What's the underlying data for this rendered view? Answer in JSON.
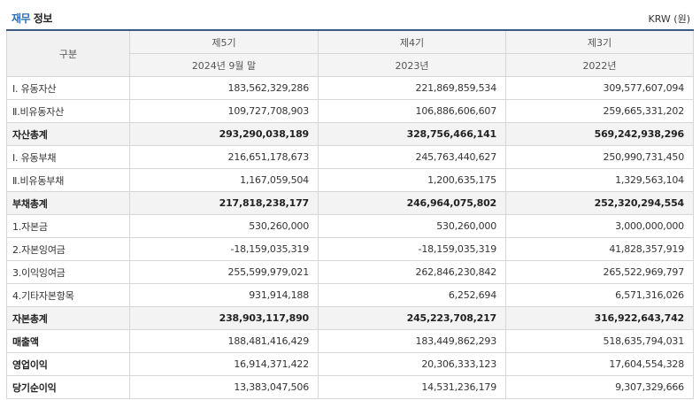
{
  "header": {
    "title_accent": "재무",
    "title_rest": "정보",
    "currency": "KRW (원)"
  },
  "table": {
    "corner": "구분",
    "periods": [
      {
        "name": "제5기",
        "date": "2024년 9월 말"
      },
      {
        "name": "제4기",
        "date": "2023년"
      },
      {
        "name": "제3기",
        "date": "2022년"
      }
    ],
    "rows": [
      {
        "label": "Ⅰ. 유동자산",
        "values": [
          "183,562,329,286",
          "221,869,859,534",
          "309,577,607,094"
        ],
        "style": "normal"
      },
      {
        "label": "Ⅱ.비유동자산",
        "values": [
          "109,727,708,903",
          "106,886,606,607",
          "259,665,331,202"
        ],
        "style": "normal"
      },
      {
        "label": "자산총계",
        "values": [
          "293,290,038,189",
          "328,756,466,141",
          "569,242,938,296"
        ],
        "style": "total"
      },
      {
        "label": "Ⅰ. 유동부채",
        "values": [
          "216,651,178,673",
          "245,763,440,627",
          "250,990,731,450"
        ],
        "style": "normal"
      },
      {
        "label": "Ⅱ.비유동부채",
        "values": [
          "1,167,059,504",
          "1,200,635,175",
          "1,329,563,104"
        ],
        "style": "normal"
      },
      {
        "label": "부채총계",
        "values": [
          "217,818,238,177",
          "246,964,075,802",
          "252,320,294,554"
        ],
        "style": "total"
      },
      {
        "label": "1.자본금",
        "values": [
          "530,260,000",
          "530,260,000",
          "3,000,000,000"
        ],
        "style": "normal"
      },
      {
        "label": "2.자본잉여금",
        "values": [
          "-18,159,035,319",
          "-18,159,035,319",
          "41,828,357,919"
        ],
        "style": "normal"
      },
      {
        "label": "3.이익잉여금",
        "values": [
          "255,599,979,021",
          "262,846,230,842",
          "265,522,969,797"
        ],
        "style": "normal"
      },
      {
        "label": "4.기타자본항목",
        "values": [
          "931,914,188",
          "6,252,694",
          "6,571,316,026"
        ],
        "style": "normal"
      },
      {
        "label": "자본총계",
        "values": [
          "238,903,117,890",
          "245,223,708,217",
          "316,922,643,742"
        ],
        "style": "total"
      },
      {
        "label": "매출액",
        "values": [
          "188,481,416,429",
          "183,449,862,293",
          "518,635,794,031"
        ],
        "style": "bold-label"
      },
      {
        "label": "영업이익",
        "values": [
          "16,914,371,422",
          "20,306,333,123",
          "17,604,554,328"
        ],
        "style": "bold-label"
      },
      {
        "label": "당기순이익",
        "values": [
          "13,383,047,506",
          "14,531,236,179",
          "9,307,329,666"
        ],
        "style": "bold-label"
      }
    ]
  }
}
